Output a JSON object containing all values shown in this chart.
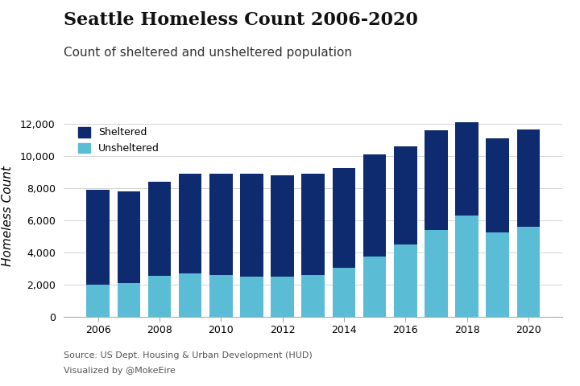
{
  "years": [
    2006,
    2007,
    2008,
    2009,
    2010,
    2011,
    2012,
    2013,
    2014,
    2015,
    2016,
    2017,
    2018,
    2019,
    2020
  ],
  "unsheltered": [
    2000,
    2100,
    2550,
    2700,
    2580,
    2480,
    2480,
    2600,
    3020,
    3720,
    4490,
    5400,
    6310,
    5220,
    5580
  ],
  "sheltered": [
    5900,
    5680,
    5860,
    6200,
    6320,
    6430,
    6310,
    6310,
    6210,
    6380,
    6110,
    6200,
    5790,
    5880,
    6090
  ],
  "sheltered_color": "#0d2b6e",
  "unsheltered_color": "#5bbcd6",
  "title": "Seattle Homeless Count 2006-2020",
  "subtitle": "Count of sheltered and unsheltered population",
  "ylabel": "Homeless Count",
  "ylim": [
    0,
    12500
  ],
  "yticks": [
    0,
    2000,
    4000,
    6000,
    8000,
    10000,
    12000
  ],
  "source": "Source: US Dept. Housing & Urban Development (HUD)",
  "credit": "Visualized by @MokeEire",
  "legend_sheltered": "Sheltered",
  "legend_unsheltered": "Unsheltered",
  "title_fontsize": 16,
  "subtitle_fontsize": 11,
  "ylabel_fontsize": 11,
  "tick_fontsize": 9,
  "background_color": "#ffffff",
  "source_fontsize": 8,
  "bar_width": 0.75
}
